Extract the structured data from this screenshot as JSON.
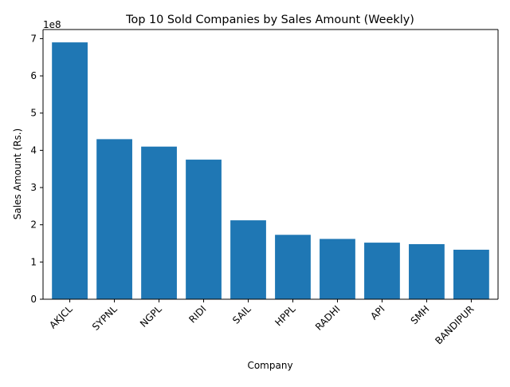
{
  "chart_data": {
    "type": "bar",
    "title": "Top 10 Sold Companies by Sales Amount (Weekly)",
    "xlabel": "Company",
    "ylabel": "Sales Amount (Rs.)",
    "offset_label": "1e8",
    "categories": [
      "AKJCL",
      "SYPNL",
      "NGPL",
      "RIDI",
      "SAIL",
      "HPPL",
      "RADHI",
      "API",
      "SMH",
      "BANDIPUR"
    ],
    "values": [
      690000000,
      430000000,
      410000000,
      375000000,
      212000000,
      173000000,
      162000000,
      152000000,
      148000000,
      133000000
    ],
    "yticks": [
      0,
      1,
      2,
      3,
      4,
      5,
      6,
      7
    ],
    "ytick_scale": 100000000,
    "ylim": [
      0,
      724500000
    ],
    "grid": false,
    "legend": "none",
    "bar_color": "#1f77b4"
  }
}
